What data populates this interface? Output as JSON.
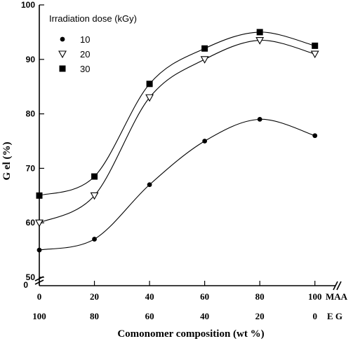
{
  "chart_data": {
    "type": "line",
    "x": [
      0,
      20,
      40,
      60,
      80,
      100
    ],
    "x_tick_labels": [
      "0",
      "20",
      "40",
      "60",
      "80",
      "100"
    ],
    "x_tick_labels_second": [
      "100",
      "80",
      "60",
      "40",
      "20",
      "0"
    ],
    "x_row_label_1": "MAA",
    "x_row_label_2": "E G",
    "y_ticks": [
      50,
      60,
      70,
      80,
      90,
      100
    ],
    "y_tick_labels": [
      "50",
      "60",
      "70",
      "80",
      "90",
      "100"
    ],
    "y_break_label": "0",
    "x_break_label": "0",
    "xlabel": "Comonomer composition (wt %)",
    "ylabel": "G el (%)",
    "xlim": [
      0,
      110
    ],
    "ylim": [
      50,
      100
    ],
    "legend_title": "Irradiation dose (kGy)",
    "legend_placement": "top-left",
    "series": [
      {
        "name": "10",
        "marker": "circle",
        "values": [
          55,
          57,
          67,
          75,
          79,
          76
        ]
      },
      {
        "name": "20",
        "marker": "triangle-down-open",
        "values": [
          60,
          65,
          83,
          90,
          93.5,
          91
        ]
      },
      {
        "name": "30",
        "marker": "square",
        "values": [
          65,
          68.5,
          85.5,
          92,
          95,
          92.5
        ]
      }
    ]
  }
}
